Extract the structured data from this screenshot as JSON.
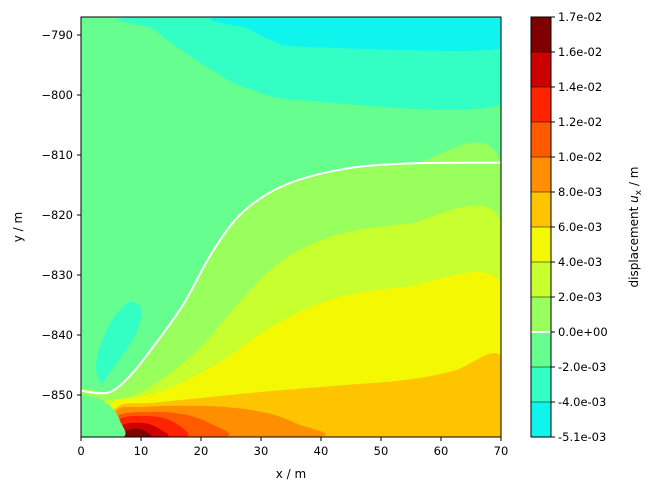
{
  "chart_data": {
    "type": "contourf",
    "xlabel": "x / m",
    "ylabel": "y / m",
    "xlim": [
      0,
      70
    ],
    "ylim": [
      -857,
      -787
    ],
    "x_ticks": [
      0,
      10,
      20,
      30,
      40,
      50,
      60,
      70
    ],
    "y_ticks": [
      -790,
      -800,
      -810,
      -820,
      -830,
      -840,
      -850
    ],
    "x_tick_labels": [
      "0",
      "10",
      "20",
      "30",
      "40",
      "50",
      "60",
      "70"
    ],
    "y_tick_labels": [
      "−790",
      "−800",
      "−810",
      "−820",
      "−830",
      "−840",
      "−850"
    ],
    "colorbar": {
      "label_prefix": "displacement ",
      "label_symbol": "u",
      "label_subscript": "x",
      "label_suffix": " / m",
      "levels": [
        -0.0051,
        -0.004,
        -0.002,
        0.0,
        0.002,
        0.004,
        0.006,
        0.008,
        0.01,
        0.012,
        0.014,
        0.016,
        0.017
      ],
      "tick_labels": [
        "-5.1e-03",
        "-4.0e-03",
        "-2.0e-03",
        "0.0e+00",
        "2.0e-03",
        "4.0e-03",
        "6.0e-03",
        "8.0e-03",
        "1.0e-02",
        "1.2e-02",
        "1.4e-02",
        "1.6e-02",
        "1.7e-02"
      ],
      "band_colors": [
        "#0ff4ec",
        "#33ffc4",
        "#66ff8f",
        "#99ff5c",
        "#c8ff2e",
        "#f4f802",
        "#ffc400",
        "#ff8f00",
        "#ff5a00",
        "#ff2300",
        "#cc0000",
        "#800000"
      ],
      "zero_line_color": "#ffffff"
    },
    "regions": [
      {
        "band": 1,
        "points": [
          [
            10,
            -787
          ],
          [
            12,
            -789
          ],
          [
            16,
            -792
          ],
          [
            22,
            -796
          ],
          [
            28,
            -799
          ],
          [
            38,
            -801
          ],
          [
            70,
            -801.5
          ],
          [
            70,
            -787
          ]
        ]
      },
      {
        "band": 0,
        "points": [
          [
            24,
            -787
          ],
          [
            28,
            -789
          ],
          [
            32,
            -791
          ],
          [
            38,
            -792
          ],
          [
            70,
            -792.3
          ],
          [
            70,
            -787
          ]
        ]
      },
      {
        "band": 1,
        "points": [
          [
            3,
            -847.5
          ],
          [
            2.5,
            -845
          ],
          [
            3.5,
            -841
          ],
          [
            5.5,
            -837
          ],
          [
            8,
            -834.5
          ],
          [
            10,
            -835.5
          ],
          [
            9.5,
            -839
          ],
          [
            7.5,
            -842.5
          ],
          [
            5,
            -846
          ],
          [
            3.5,
            -848
          ]
        ]
      },
      {
        "band": 3,
        "points": [
          [
            0,
            -849.3
          ],
          [
            4.5,
            -849.6
          ],
          [
            8,
            -847
          ],
          [
            12,
            -842
          ],
          [
            17,
            -835
          ],
          [
            22,
            -826
          ],
          [
            27,
            -819.5
          ],
          [
            34,
            -815
          ],
          [
            44,
            -812.3
          ],
          [
            55,
            -811.4
          ],
          [
            70,
            -811.3
          ],
          [
            70,
            -857
          ],
          [
            0,
            -857
          ]
        ]
      },
      {
        "band": 4,
        "points": [
          [
            0,
            -852
          ],
          [
            5,
            -850.8
          ],
          [
            9,
            -850
          ],
          [
            14,
            -847
          ],
          [
            20,
            -842
          ],
          [
            26,
            -835
          ],
          [
            33,
            -828
          ],
          [
            42,
            -823.5
          ],
          [
            54,
            -821.5
          ],
          [
            70,
            -821
          ],
          [
            70,
            -857
          ],
          [
            0,
            -857
          ]
        ]
      },
      {
        "band": 5,
        "points": [
          [
            5,
            -851.5
          ],
          [
            10,
            -850.3
          ],
          [
            16,
            -848.3
          ],
          [
            24,
            -844
          ],
          [
            32,
            -838.5
          ],
          [
            42,
            -834
          ],
          [
            54,
            -832
          ],
          [
            70,
            -831.3
          ],
          [
            70,
            -857
          ],
          [
            5,
            -857
          ]
        ]
      },
      {
        "band": 6,
        "points": [
          [
            6,
            -852
          ],
          [
            12,
            -851.3
          ],
          [
            20,
            -850.5
          ],
          [
            30,
            -849.5
          ],
          [
            42,
            -848.5
          ],
          [
            54,
            -847.5
          ],
          [
            62,
            -846
          ],
          [
            70,
            -843.5
          ],
          [
            70,
            -857
          ],
          [
            6,
            -857
          ]
        ]
      },
      {
        "band": 7,
        "points": [
          [
            6,
            -852.5
          ],
          [
            10,
            -852
          ],
          [
            16,
            -851.8
          ],
          [
            24,
            -852
          ],
          [
            31,
            -853
          ],
          [
            36,
            -854.8
          ],
          [
            39,
            -857
          ],
          [
            6,
            -857
          ]
        ]
      },
      {
        "band": 8,
        "points": [
          [
            6,
            -853.5
          ],
          [
            12,
            -852.8
          ],
          [
            17,
            -853.2
          ],
          [
            21,
            -854.5
          ],
          [
            24,
            -857
          ],
          [
            6,
            -857
          ]
        ]
      },
      {
        "band": 9,
        "points": [
          [
            6.5,
            -854
          ],
          [
            11,
            -853.5
          ],
          [
            15,
            -854.3
          ],
          [
            17.5,
            -857
          ],
          [
            6.5,
            -857
          ]
        ]
      },
      {
        "band": 10,
        "points": [
          [
            7,
            -855
          ],
          [
            10.5,
            -854.7
          ],
          [
            13,
            -855.6
          ],
          [
            14.3,
            -857
          ],
          [
            7,
            -857
          ]
        ]
      },
      {
        "band": 11,
        "points": [
          [
            7.5,
            -856
          ],
          [
            9.5,
            -855.6
          ],
          [
            11,
            -856.2
          ],
          [
            11.5,
            -857
          ],
          [
            7.5,
            -857
          ]
        ]
      },
      {
        "band": 2,
        "points": [
          [
            0,
            -850.5
          ],
          [
            2,
            -850.4
          ],
          [
            4,
            -851.2
          ],
          [
            5.5,
            -852.5
          ],
          [
            6.5,
            -854.3
          ],
          [
            7,
            -857
          ],
          [
            0,
            -857
          ]
        ]
      }
    ],
    "zero_contour": [
      [
        0,
        -849.3
      ],
      [
        4.5,
        -849.6
      ],
      [
        8,
        -847
      ],
      [
        12,
        -842
      ],
      [
        17,
        -835
      ],
      [
        22,
        -826
      ],
      [
        27,
        -819.5
      ],
      [
        34,
        -815
      ],
      [
        44,
        -812.3
      ],
      [
        55,
        -811.4
      ],
      [
        70,
        -811.3
      ]
    ]
  }
}
